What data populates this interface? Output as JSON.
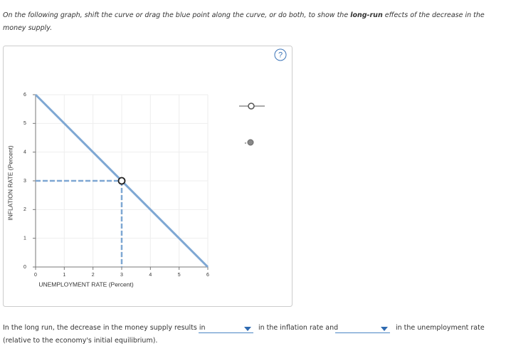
{
  "instruction": {
    "before": "On the following graph, shift the curve or drag the blue point along the curve, or do both, to show the ",
    "bold": "long-run",
    "after": " effects of the decrease in the money supply."
  },
  "help": "?",
  "chart_data": {
    "type": "line",
    "x_label": "UNEMPLOYMENT RATE (Percent)",
    "y_label": "INFLATION RATE (Percent)",
    "x": [
      0,
      6
    ],
    "series": [
      {
        "color": "#7ea7d3",
        "values": [
          6,
          0
        ]
      }
    ],
    "point": {
      "x": 3,
      "y": 3
    },
    "xlim": [
      0,
      6
    ],
    "ylim": [
      0,
      6
    ],
    "xticks": [
      0,
      1,
      2,
      3,
      4,
      5,
      6
    ],
    "yticks": [
      0,
      1,
      2,
      3,
      4,
      5,
      6
    ],
    "grid": true
  },
  "answer": {
    "start": "In the long run, the decrease in the money supply results in",
    "middle": "in the inflation rate and",
    "end": "in the unemployment rate",
    "note": "(relative to the economy's initial equilibrium)."
  }
}
